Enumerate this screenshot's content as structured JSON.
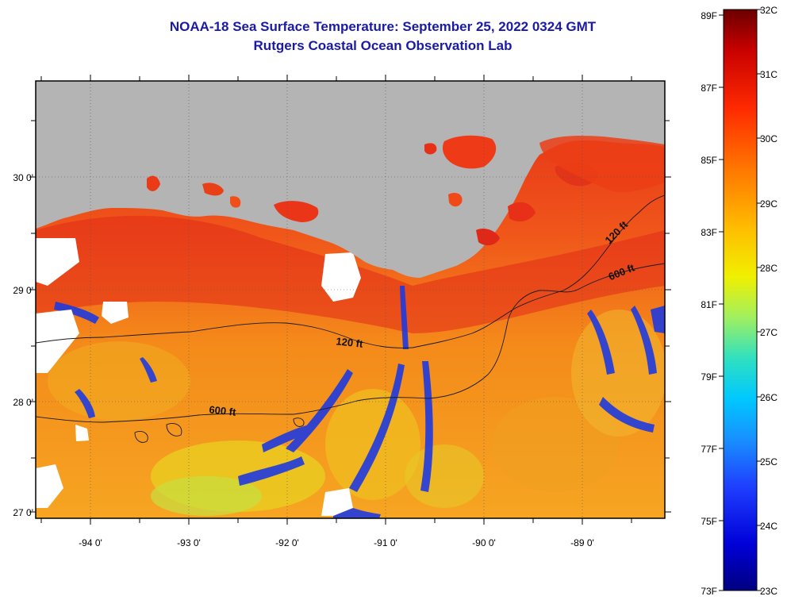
{
  "header": {
    "title": "NOAA-18 Sea Surface Temperature:  September 25, 2022 0324 GMT",
    "subtitle": "Rutgers Coastal Ocean Observation Lab"
  },
  "map": {
    "lat_labels": [
      "30 0'",
      "29 0'",
      "28 0'",
      "27 0'"
    ],
    "lon_labels": [
      "-94 0'",
      "-93 0'",
      "-92 0'",
      "-91 0'",
      "-90 0'",
      "-89 0'"
    ],
    "lat_range": [
      26.95,
      30.8
    ],
    "lon_range": [
      -94.55,
      -88.1
    ],
    "contour_labels": {
      "c120_west": "120 ft",
      "c120_east": "120 ft",
      "c600_west": "600 ft",
      "c600_east": "600 ft"
    },
    "colors": {
      "land": "#b4b4b4",
      "ocean_warm": "#f06a12",
      "nearshore_hot": "#e0251b",
      "cool_streak": "#2540d8",
      "cloud": "#ffffff"
    }
  },
  "colorbar": {
    "fahrenheit": [
      "89F",
      "87F",
      "85F",
      "83F",
      "81F",
      "79F",
      "77F",
      "75F",
      "73F"
    ],
    "celsius": [
      "32C",
      "31C",
      "30C",
      "29C",
      "28C",
      "27C",
      "26C",
      "25C",
      "24C",
      "23C"
    ],
    "stops": [
      "#6b0000",
      "#c80000",
      "#ff2a00",
      "#ff7a00",
      "#ffbf00",
      "#f0f000",
      "#a0f060",
      "#30e0c0",
      "#00c8ff",
      "#1890ff",
      "#1f40ff",
      "#0000d8",
      "#000080"
    ]
  }
}
